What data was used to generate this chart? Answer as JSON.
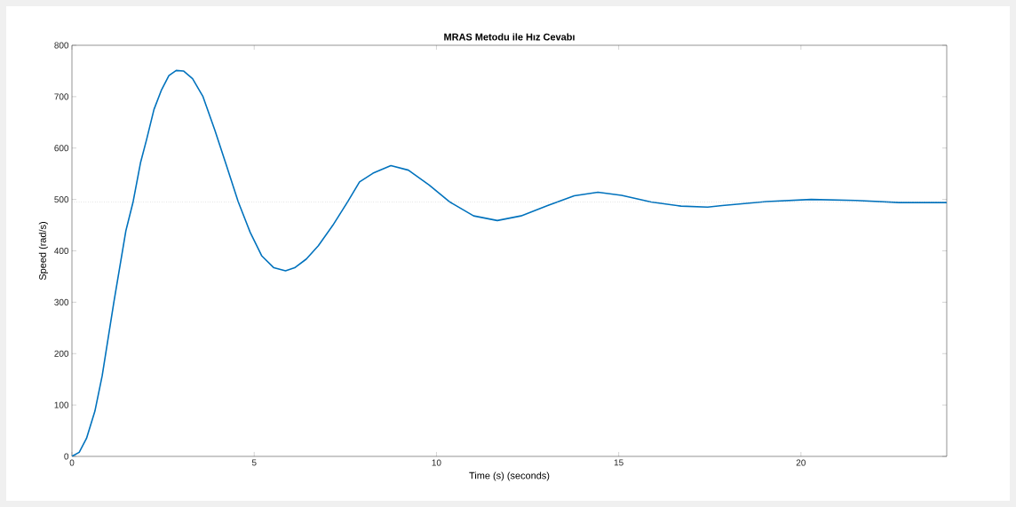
{
  "chart_data": {
    "type": "line",
    "title": "MRAS Metodu ile Hız Cevabı",
    "xlabel": "Time (s) (seconds)",
    "ylabel": "Speed (rad/s)",
    "xlim": [
      0,
      24
    ],
    "ylim": [
      0,
      800
    ],
    "xticks": [
      0,
      5,
      10,
      15,
      20
    ],
    "yticks": [
      0,
      100,
      200,
      300,
      400,
      500,
      600,
      700,
      800
    ],
    "grid": false,
    "marker": "none",
    "ref_lines": [
      {
        "axis": "y",
        "value": 495,
        "color": "#b4b4b4",
        "line_style": "dotted"
      }
    ],
    "series": [
      {
        "color": "#0072bd",
        "x": [
          0,
          0.2,
          0.4,
          0.63,
          0.83,
          1.15,
          1.48,
          1.68,
          1.88,
          2.05,
          2.25,
          2.45,
          2.66,
          2.86,
          3.06,
          3.31,
          3.59,
          3.92,
          4.24,
          4.56,
          4.89,
          5.21,
          5.54,
          5.86,
          6.11,
          6.43,
          6.76,
          7.16,
          7.57,
          7.89,
          8.26,
          8.75,
          9.23,
          9.8,
          10.37,
          11.02,
          11.67,
          12.32,
          13.05,
          13.78,
          14.43,
          15.08,
          15.89,
          16.71,
          17.44,
          17.84,
          19.06,
          20.28,
          21.5,
          22.7,
          24
        ],
        "values": [
          0,
          8,
          35,
          88,
          157,
          300,
          439,
          496,
          571,
          617,
          675,
          712,
          741,
          751,
          750,
          735,
          701,
          635,
          566,
          496,
          436,
          390,
          367,
          361,
          367,
          384,
          410,
          450,
          496,
          534,
          551,
          566,
          557,
          528,
          495,
          468,
          459,
          468,
          488,
          507,
          514,
          508,
          495,
          487,
          485,
          488,
          496,
          500,
          498,
          494,
          494
        ]
      }
    ]
  }
}
